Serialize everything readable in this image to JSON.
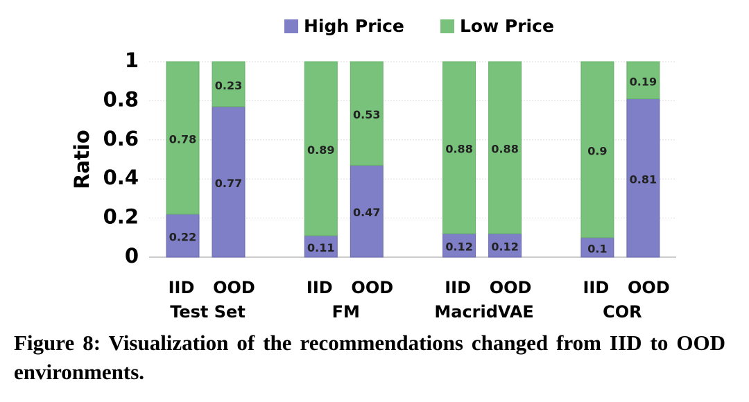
{
  "chart_data": {
    "type": "bar",
    "stacked": true,
    "categories": [
      "IID",
      "OOD",
      "IID",
      "OOD",
      "IID",
      "OOD",
      "IID",
      "OOD"
    ],
    "groups": [
      "Test Set",
      "FM",
      "MacridVAE",
      "COR"
    ],
    "series": [
      {
        "name": "High Price",
        "color": "#7f7fc8",
        "values": [
          0.22,
          0.77,
          0.11,
          0.47,
          0.12,
          0.12,
          0.1,
          0.81
        ]
      },
      {
        "name": "Low Price",
        "color": "#78c27b",
        "values": [
          0.78,
          0.23,
          0.89,
          0.53,
          0.88,
          0.88,
          0.9,
          0.19
        ]
      }
    ],
    "ylabel": "Ratio",
    "ylim": [
      0,
      1
    ],
    "yticks": [
      0,
      0.2,
      0.4,
      0.6,
      0.8,
      1
    ],
    "grid": true,
    "legend": "top",
    "caption": "Figure 8: Visualization of the recommendations changed from IID to OOD environments."
  }
}
